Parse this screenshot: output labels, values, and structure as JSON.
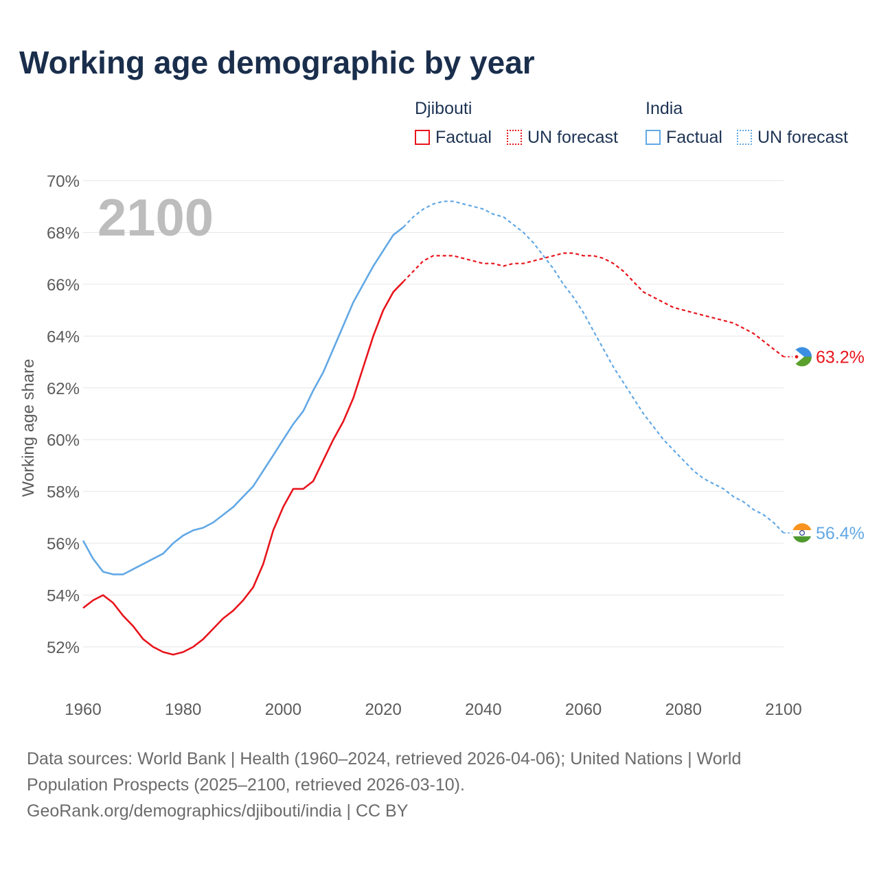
{
  "title": "Working age demographic by year",
  "legend": {
    "groups": [
      {
        "name": "Djibouti",
        "color": "#e8141c",
        "factual_label": "Factual",
        "forecast_label": "UN forecast"
      },
      {
        "name": "India",
        "color": "#62a8e5",
        "factual_label": "Factual",
        "forecast_label": "UN forecast"
      }
    ]
  },
  "year_overlay": "2100",
  "chart_data": {
    "type": "line",
    "title": "Working age demographic by year",
    "xlabel": "",
    "ylabel": "Working age share",
    "xlim": [
      1960,
      2100
    ],
    "ylim": [
      51,
      70
    ],
    "x_ticks": [
      1960,
      1980,
      2000,
      2020,
      2040,
      2060,
      2080,
      2100
    ],
    "y_ticks": [
      52,
      54,
      56,
      58,
      60,
      62,
      64,
      66,
      68,
      70
    ],
    "y_tick_suffix": "%",
    "grid": true,
    "factual_end_year": 2024,
    "series": [
      {
        "name": "Djibouti",
        "color": "#e8141c",
        "end_label": "63.2%",
        "points": [
          [
            1960,
            53.5
          ],
          [
            1962,
            53.8
          ],
          [
            1964,
            54.0
          ],
          [
            1966,
            53.7
          ],
          [
            1968,
            53.2
          ],
          [
            1970,
            52.8
          ],
          [
            1972,
            52.3
          ],
          [
            1974,
            52.0
          ],
          [
            1976,
            51.8
          ],
          [
            1978,
            51.7
          ],
          [
            1980,
            51.8
          ],
          [
            1982,
            52.0
          ],
          [
            1984,
            52.3
          ],
          [
            1986,
            52.7
          ],
          [
            1988,
            53.1
          ],
          [
            1990,
            53.4
          ],
          [
            1992,
            53.8
          ],
          [
            1994,
            54.3
          ],
          [
            1996,
            55.2
          ],
          [
            1998,
            56.5
          ],
          [
            2000,
            57.4
          ],
          [
            2002,
            58.1
          ],
          [
            2004,
            58.1
          ],
          [
            2006,
            58.4
          ],
          [
            2008,
            59.2
          ],
          [
            2010,
            60.0
          ],
          [
            2012,
            60.7
          ],
          [
            2014,
            61.6
          ],
          [
            2016,
            62.8
          ],
          [
            2018,
            64.0
          ],
          [
            2020,
            65.0
          ],
          [
            2022,
            65.7
          ],
          [
            2024,
            66.1
          ],
          [
            2026,
            66.5
          ],
          [
            2028,
            66.9
          ],
          [
            2030,
            67.1
          ],
          [
            2032,
            67.1
          ],
          [
            2034,
            67.1
          ],
          [
            2036,
            67.0
          ],
          [
            2038,
            66.9
          ],
          [
            2040,
            66.8
          ],
          [
            2042,
            66.8
          ],
          [
            2044,
            66.7
          ],
          [
            2046,
            66.8
          ],
          [
            2048,
            66.8
          ],
          [
            2050,
            66.9
          ],
          [
            2052,
            67.0
          ],
          [
            2054,
            67.1
          ],
          [
            2056,
            67.2
          ],
          [
            2058,
            67.2
          ],
          [
            2060,
            67.1
          ],
          [
            2062,
            67.1
          ],
          [
            2064,
            67.0
          ],
          [
            2066,
            66.8
          ],
          [
            2068,
            66.5
          ],
          [
            2070,
            66.1
          ],
          [
            2072,
            65.7
          ],
          [
            2074,
            65.5
          ],
          [
            2076,
            65.3
          ],
          [
            2078,
            65.1
          ],
          [
            2080,
            65.0
          ],
          [
            2082,
            64.9
          ],
          [
            2084,
            64.8
          ],
          [
            2086,
            64.7
          ],
          [
            2088,
            64.6
          ],
          [
            2090,
            64.5
          ],
          [
            2092,
            64.3
          ],
          [
            2094,
            64.1
          ],
          [
            2096,
            63.8
          ],
          [
            2098,
            63.5
          ],
          [
            2100,
            63.2
          ]
        ]
      },
      {
        "name": "India",
        "color": "#62a8e5",
        "end_label": "56.4%",
        "points": [
          [
            1960,
            56.1
          ],
          [
            1962,
            55.4
          ],
          [
            1964,
            54.9
          ],
          [
            1966,
            54.8
          ],
          [
            1968,
            54.8
          ],
          [
            1970,
            55.0
          ],
          [
            1972,
            55.2
          ],
          [
            1974,
            55.4
          ],
          [
            1976,
            55.6
          ],
          [
            1978,
            56.0
          ],
          [
            1980,
            56.3
          ],
          [
            1982,
            56.5
          ],
          [
            1984,
            56.6
          ],
          [
            1986,
            56.8
          ],
          [
            1988,
            57.1
          ],
          [
            1990,
            57.4
          ],
          [
            1992,
            57.8
          ],
          [
            1994,
            58.2
          ],
          [
            1996,
            58.8
          ],
          [
            1998,
            59.4
          ],
          [
            2000,
            60.0
          ],
          [
            2002,
            60.6
          ],
          [
            2004,
            61.1
          ],
          [
            2006,
            61.9
          ],
          [
            2008,
            62.6
          ],
          [
            2010,
            63.5
          ],
          [
            2012,
            64.4
          ],
          [
            2014,
            65.3
          ],
          [
            2016,
            66.0
          ],
          [
            2018,
            66.7
          ],
          [
            2020,
            67.3
          ],
          [
            2022,
            67.9
          ],
          [
            2024,
            68.2
          ],
          [
            2026,
            68.6
          ],
          [
            2028,
            68.9
          ],
          [
            2030,
            69.1
          ],
          [
            2032,
            69.2
          ],
          [
            2034,
            69.2
          ],
          [
            2036,
            69.1
          ],
          [
            2038,
            69.0
          ],
          [
            2040,
            68.9
          ],
          [
            2042,
            68.7
          ],
          [
            2044,
            68.6
          ],
          [
            2046,
            68.3
          ],
          [
            2048,
            68.0
          ],
          [
            2050,
            67.6
          ],
          [
            2052,
            67.1
          ],
          [
            2054,
            66.6
          ],
          [
            2056,
            66.0
          ],
          [
            2058,
            65.5
          ],
          [
            2060,
            64.9
          ],
          [
            2062,
            64.2
          ],
          [
            2064,
            63.5
          ],
          [
            2066,
            62.8
          ],
          [
            2068,
            62.2
          ],
          [
            2070,
            61.6
          ],
          [
            2072,
            61.0
          ],
          [
            2074,
            60.5
          ],
          [
            2076,
            60.0
          ],
          [
            2078,
            59.6
          ],
          [
            2080,
            59.2
          ],
          [
            2082,
            58.8
          ],
          [
            2084,
            58.5
          ],
          [
            2086,
            58.3
          ],
          [
            2088,
            58.1
          ],
          [
            2090,
            57.8
          ],
          [
            2092,
            57.6
          ],
          [
            2094,
            57.3
          ],
          [
            2096,
            57.1
          ],
          [
            2098,
            56.8
          ],
          [
            2100,
            56.4
          ]
        ]
      }
    ]
  },
  "footer": {
    "line1": "Data sources: World Bank | Health (1960–2024, retrieved 2026-04-06); United Nations | World",
    "line2": "Population Prospects (2025–2100, retrieved 2026-03-10).",
    "line3": "GeoRank.org/demographics/djibouti/india | CC BY"
  }
}
